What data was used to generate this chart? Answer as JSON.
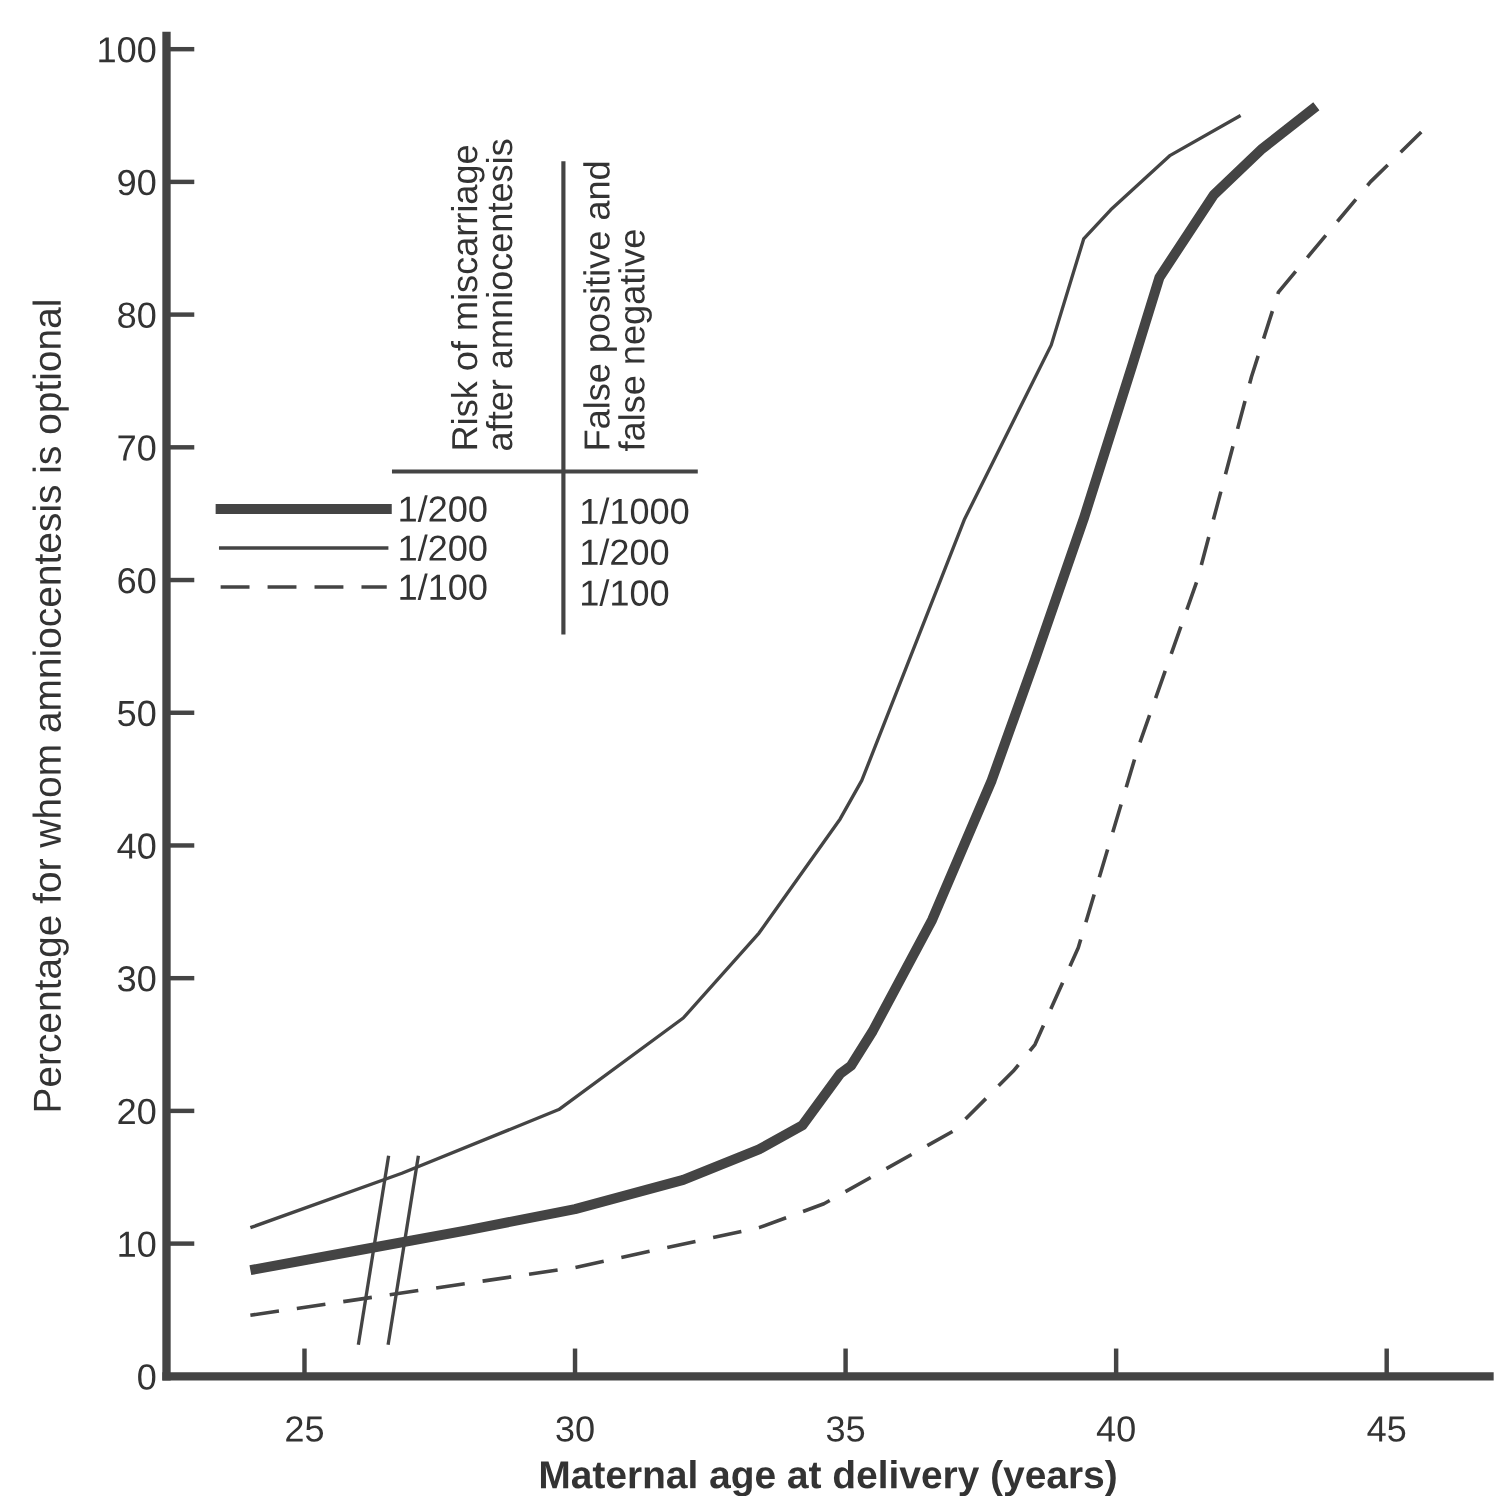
{
  "chart_data": {
    "type": "line",
    "xlabel": "Maternal age at delivery (years)",
    "ylabel": "Percentage for whom amniocentesis is optional",
    "xlim": [
      22.45,
      46.9
    ],
    "ylim": [
      0,
      101
    ],
    "xticks": [
      25,
      30,
      35,
      40,
      45
    ],
    "yticks": [
      0,
      10,
      20,
      30,
      40,
      50,
      60,
      70,
      80,
      90,
      100
    ],
    "grid": false,
    "legend": "top left",
    "marker": "none",
    "annotations": [
      "Risk of miscarriage\nafter amniocentesis",
      "False positive and\nfalse negative",
      "1/1000",
      "1/200",
      "1/100"
    ],
    "series": [
      {
        "name": "1/200",
        "color": "#444444",
        "line_style": "solid",
        "x": [
          24,
          26,
          28,
          30,
          32,
          33.4,
          34.2,
          34.9,
          35.1,
          35.5,
          36.6,
          37.7,
          38.5,
          39.4,
          40.3,
          40.8,
          41.8,
          42.7,
          43.7
        ],
        "values": [
          8.0,
          9.5,
          11.0,
          12.6,
          14.8,
          17.1,
          18.9,
          22.8,
          23.4,
          26.0,
          34.4,
          44.9,
          54,
          64.6,
          76.2,
          82.8,
          89,
          92.5,
          95.7
        ]
      },
      {
        "name": "1/200",
        "color": "#444444",
        "line_style": "solid",
        "x": [
          24,
          26.8,
          29.7,
          32,
          33.4,
          34.9,
          35.3,
          37.2,
          38.8,
          39.4,
          39.9,
          41.0,
          42.3
        ],
        "values": [
          11.2,
          15.3,
          20.1,
          27,
          33.4,
          42,
          44.9,
          64.6,
          77.7,
          85.7,
          87.9,
          92,
          95
        ]
      },
      {
        "name": "1/100",
        "color": "#444444",
        "line_style": "dashed",
        "x": [
          24,
          26,
          30.0,
          33.4,
          34.6,
          37.0,
          38.1,
          38.5,
          39.3,
          40.4,
          41.5,
          42.5,
          43.0,
          44.7,
          45.7
        ],
        "values": [
          4.6,
          5.8,
          8.2,
          11.2,
          13.0,
          18.5,
          23.0,
          25.0,
          32.3,
          47.3,
          60,
          75.3,
          81.7,
          90,
          94
        ]
      }
    ]
  }
}
